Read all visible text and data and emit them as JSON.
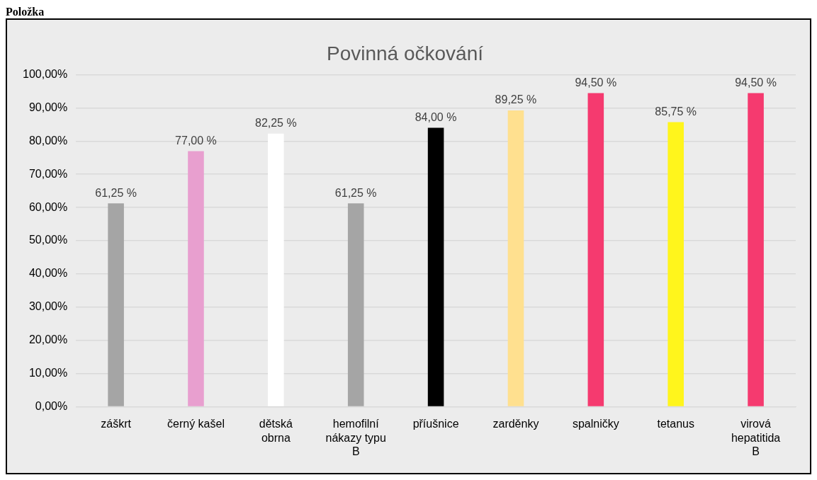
{
  "chart_data": {
    "type": "bar",
    "title": "Povinná očkování",
    "annotations": [
      "Položka"
    ],
    "categories": [
      "záškrt",
      "černý kašel",
      "dětská obrna",
      "hemofilní nákazy typu B",
      "příušnice",
      "zarděnky",
      "spalničky",
      "tetanus",
      "virová hepatitida B"
    ],
    "values": [
      61.25,
      77,
      82.25,
      61.25,
      84,
      89.25,
      94.5,
      85.75,
      94.5
    ],
    "colors": [
      "#a5a5a5",
      "#e89fcf",
      "#ffffff",
      "#a5a5a5",
      "#000000",
      "#ffe08f",
      "#f53a6f",
      "#fff51c",
      "#f53a6f"
    ],
    "value_labels": [
      "61,25 %",
      "77,00 %",
      "82,25 %",
      "61,25 %",
      "84,00 %",
      "89,25 %",
      "94,50 %",
      "85,75 %",
      "94,50 %"
    ],
    "ylim": [
      0,
      100
    ],
    "yticks": [
      {
        "value": 0,
        "label": "0,00%"
      },
      {
        "value": 10,
        "label": "10,00%"
      },
      {
        "value": 20,
        "label": "20,00%"
      },
      {
        "value": 30,
        "label": "30,00%"
      },
      {
        "value": 40,
        "label": "40,00%"
      },
      {
        "value": 50,
        "label": "50,00%"
      },
      {
        "value": 60,
        "label": "60,00%"
      },
      {
        "value": 70,
        "label": "70,00%"
      },
      {
        "value": 80,
        "label": "80,00%"
      },
      {
        "value": 90,
        "label": "90,00%"
      },
      {
        "value": 100,
        "label": "100,00%"
      }
    ],
    "grid": "y",
    "legend": false
  }
}
